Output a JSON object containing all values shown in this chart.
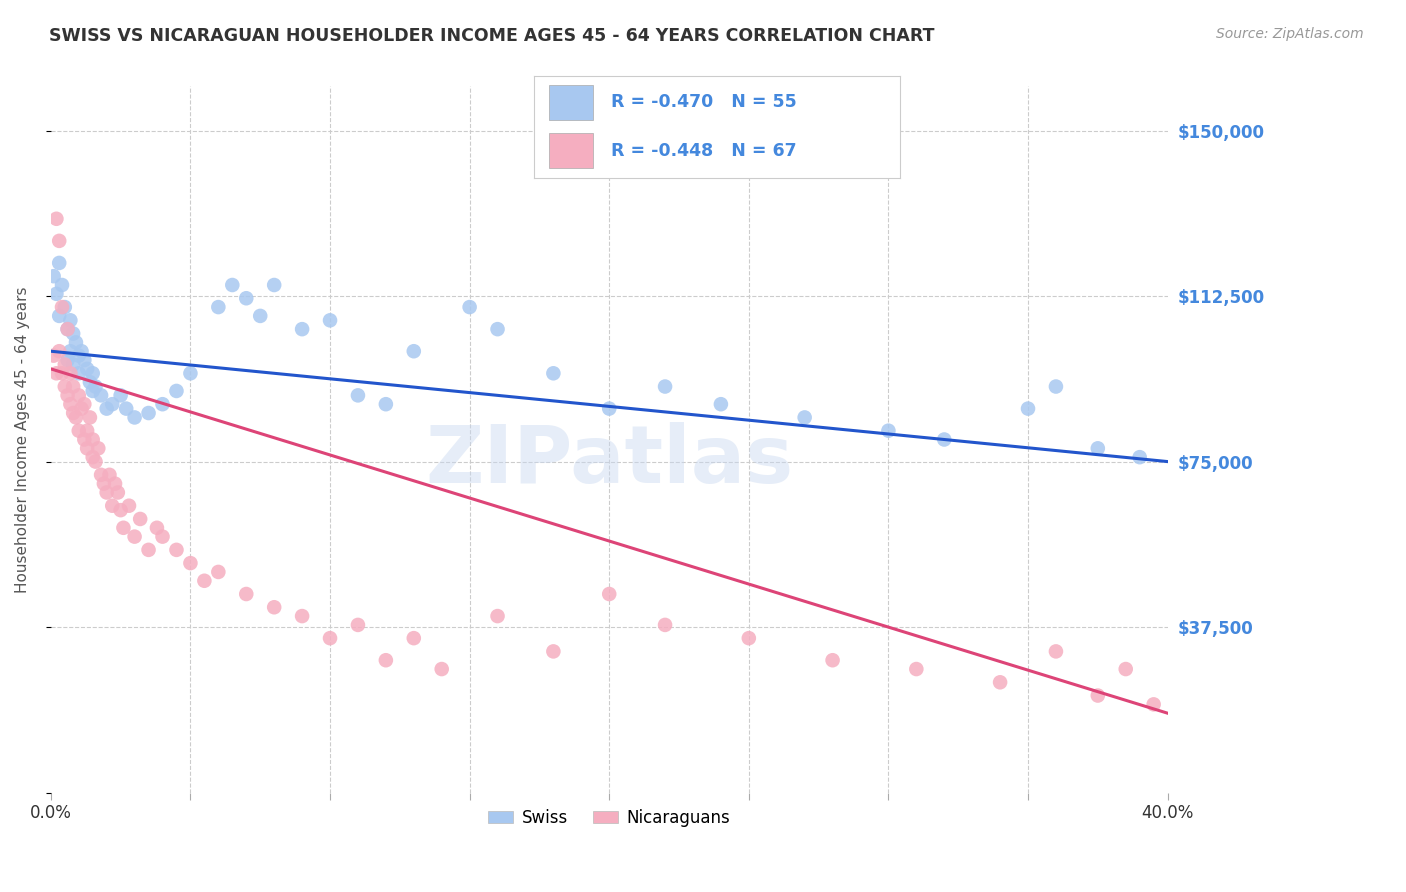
{
  "title": "SWISS VS NICARAGUAN HOUSEHOLDER INCOME AGES 45 - 64 YEARS CORRELATION CHART",
  "source": "Source: ZipAtlas.com",
  "ylabel": "Householder Income Ages 45 - 64 years",
  "yticks": [
    0,
    37500,
    75000,
    112500,
    150000
  ],
  "ytick_labels_right": [
    "",
    "$37,500",
    "$75,000",
    "$112,500",
    "$150,000"
  ],
  "xticks": [
    0.0,
    0.05,
    0.1,
    0.15,
    0.2,
    0.25,
    0.3,
    0.35,
    0.4
  ],
  "xlim": [
    0.0,
    0.4
  ],
  "ylim": [
    0,
    160000
  ],
  "legend_swiss_label": "R = -0.470   N = 55",
  "legend_nic_label": "R = -0.448   N = 67",
  "swiss_color": "#a8c8f0",
  "nic_color": "#f5aec0",
  "swiss_line_color": "#2255cc",
  "nic_line_color": "#dd4477",
  "background_color": "#ffffff",
  "grid_color": "#cccccc",
  "title_color": "#333333",
  "axis_label_color": "#4488dd",
  "watermark": "ZIPatlas",
  "swiss_line_x0": 0.0,
  "swiss_line_y0": 100000,
  "swiss_line_x1": 0.4,
  "swiss_line_y1": 75000,
  "nic_line_x0": 0.0,
  "nic_line_y0": 96000,
  "nic_line_x1": 0.4,
  "nic_line_y1": 18000,
  "swiss_x": [
    0.001,
    0.002,
    0.003,
    0.003,
    0.004,
    0.005,
    0.006,
    0.006,
    0.007,
    0.007,
    0.008,
    0.008,
    0.009,
    0.01,
    0.01,
    0.011,
    0.012,
    0.013,
    0.014,
    0.015,
    0.015,
    0.016,
    0.018,
    0.02,
    0.022,
    0.025,
    0.027,
    0.03,
    0.035,
    0.04,
    0.045,
    0.05,
    0.06,
    0.065,
    0.07,
    0.075,
    0.08,
    0.09,
    0.1,
    0.11,
    0.12,
    0.13,
    0.15,
    0.16,
    0.18,
    0.2,
    0.22,
    0.24,
    0.27,
    0.3,
    0.32,
    0.35,
    0.36,
    0.375,
    0.39
  ],
  "swiss_y": [
    117000,
    113000,
    108000,
    120000,
    115000,
    110000,
    105000,
    98000,
    107000,
    100000,
    104000,
    97000,
    102000,
    99000,
    95000,
    100000,
    98000,
    96000,
    93000,
    95000,
    91000,
    92000,
    90000,
    87000,
    88000,
    90000,
    87000,
    85000,
    86000,
    88000,
    91000,
    95000,
    110000,
    115000,
    112000,
    108000,
    115000,
    105000,
    107000,
    90000,
    88000,
    100000,
    110000,
    105000,
    95000,
    87000,
    92000,
    88000,
    85000,
    82000,
    80000,
    87000,
    92000,
    78000,
    76000
  ],
  "nic_x": [
    0.001,
    0.002,
    0.002,
    0.003,
    0.003,
    0.004,
    0.004,
    0.005,
    0.005,
    0.006,
    0.006,
    0.007,
    0.007,
    0.008,
    0.008,
    0.009,
    0.01,
    0.01,
    0.011,
    0.012,
    0.012,
    0.013,
    0.013,
    0.014,
    0.015,
    0.015,
    0.016,
    0.017,
    0.018,
    0.019,
    0.02,
    0.021,
    0.022,
    0.023,
    0.024,
    0.025,
    0.026,
    0.028,
    0.03,
    0.032,
    0.035,
    0.038,
    0.04,
    0.045,
    0.05,
    0.055,
    0.06,
    0.07,
    0.08,
    0.09,
    0.1,
    0.11,
    0.12,
    0.13,
    0.14,
    0.16,
    0.18,
    0.2,
    0.22,
    0.25,
    0.28,
    0.31,
    0.34,
    0.36,
    0.375,
    0.385,
    0.395
  ],
  "nic_y": [
    99000,
    95000,
    130000,
    125000,
    100000,
    110000,
    95000,
    92000,
    97000,
    90000,
    105000,
    88000,
    95000,
    86000,
    92000,
    85000,
    82000,
    90000,
    87000,
    80000,
    88000,
    82000,
    78000,
    85000,
    80000,
    76000,
    75000,
    78000,
    72000,
    70000,
    68000,
    72000,
    65000,
    70000,
    68000,
    64000,
    60000,
    65000,
    58000,
    62000,
    55000,
    60000,
    58000,
    55000,
    52000,
    48000,
    50000,
    45000,
    42000,
    40000,
    35000,
    38000,
    30000,
    35000,
    28000,
    40000,
    32000,
    45000,
    38000,
    35000,
    30000,
    28000,
    25000,
    32000,
    22000,
    28000,
    20000
  ]
}
